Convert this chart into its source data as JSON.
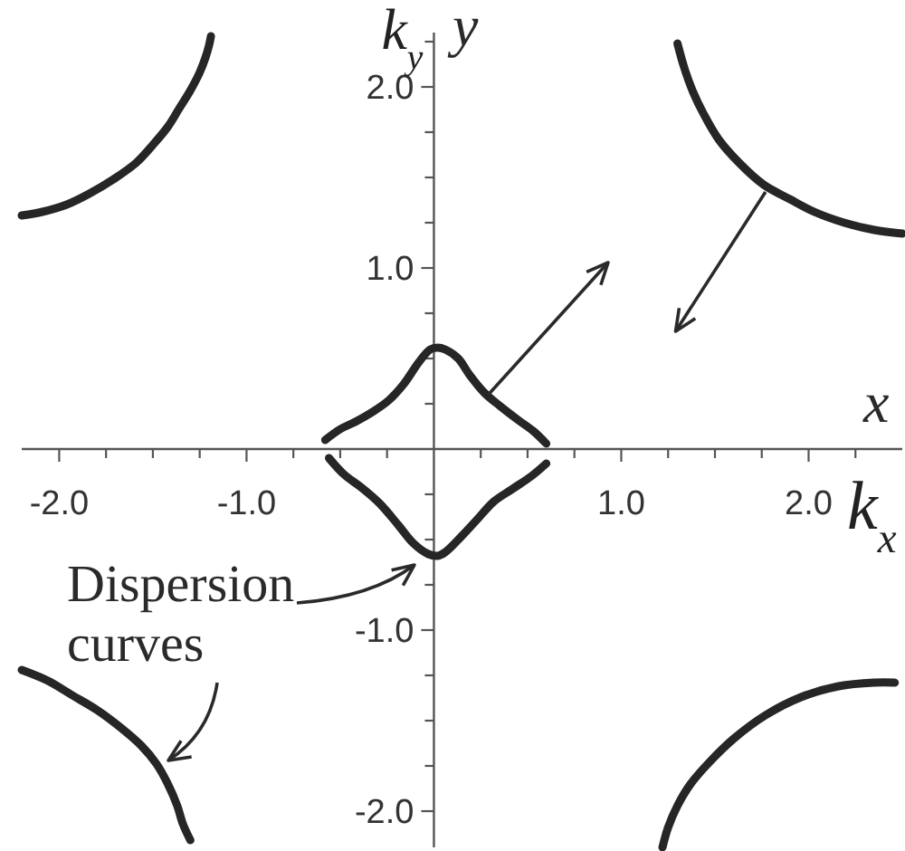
{
  "chart_data": {
    "type": "line",
    "xlabel": "k$_{x}$",
    "ylabel": "k$_{y}$",
    "annotations": [
      "Dispersion curves",
      "x",
      "y"
    ],
    "xlim": [
      -2.2,
      2.5
    ],
    "ylim": [
      -2.2,
      2.3
    ],
    "xticks": [
      {
        "value": -2,
        "label": "-2.0"
      },
      {
        "value": -1.75,
        "label": null
      },
      {
        "value": -1.5,
        "label": null
      },
      {
        "value": -1.25,
        "label": null
      },
      {
        "value": -1,
        "label": "-1.0"
      },
      {
        "value": -0.75,
        "label": null
      },
      {
        "value": -0.5,
        "label": null
      },
      {
        "value": -0.25,
        "label": null
      },
      {
        "value": 0.25,
        "label": null
      },
      {
        "value": 0.5,
        "label": null
      },
      {
        "value": 0.75,
        "label": null
      },
      {
        "value": 1,
        "label": "1.0"
      },
      {
        "value": 1.25,
        "label": null
      },
      {
        "value": 1.5,
        "label": null
      },
      {
        "value": 1.75,
        "label": null
      },
      {
        "value": 2,
        "label": "2.0"
      },
      {
        "value": 2.25,
        "label": null
      }
    ],
    "yticks": [
      {
        "value": -2,
        "label": "-2.0"
      },
      {
        "value": -1.75,
        "label": null
      },
      {
        "value": -1.5,
        "label": null
      },
      {
        "value": -1.25,
        "label": null
      },
      {
        "value": -1,
        "label": "-1.0"
      },
      {
        "value": -0.75,
        "label": null
      },
      {
        "value": -0.5,
        "label": null
      },
      {
        "value": -0.25,
        "label": null
      },
      {
        "value": 0.25,
        "label": null
      },
      {
        "value": 0.5,
        "label": null
      },
      {
        "value": 0.75,
        "label": null
      },
      {
        "value": 1,
        "label": "1.0"
      },
      {
        "value": 1.25,
        "label": null
      },
      {
        "value": 1.5,
        "label": null
      },
      {
        "value": 1.75,
        "label": null
      },
      {
        "value": 2,
        "label": "2.0"
      },
      {
        "value": 2.25,
        "label": null
      }
    ],
    "series": [
      {
        "color": "#262626",
        "x": [
          -0.58,
          -0.5,
          -0.42,
          -0.32,
          -0.24,
          -0.16,
          -0.08,
          -0.02,
          0.02,
          0.06,
          0.13,
          0.19,
          0.27,
          0.35,
          0.45,
          0.53,
          0.6
        ],
        "values": [
          0.05,
          0.11,
          0.15,
          0.21,
          0.27,
          0.36,
          0.48,
          0.55,
          0.56,
          0.55,
          0.5,
          0.41,
          0.31,
          0.24,
          0.16,
          0.1,
          0.03
        ]
      },
      {
        "color": "#262626",
        "x": [
          -0.56,
          -0.48,
          -0.39,
          -0.29,
          -0.19,
          -0.11,
          -0.03,
          0.02,
          0.06,
          0.14,
          0.23,
          0.32,
          0.42,
          0.52,
          0.6
        ],
        "values": [
          -0.05,
          -0.14,
          -0.21,
          -0.3,
          -0.42,
          -0.52,
          -0.58,
          -0.59,
          -0.57,
          -0.49,
          -0.39,
          -0.29,
          -0.22,
          -0.15,
          -0.08
        ]
      },
      {
        "color": "#262626",
        "x": [
          -2.2,
          -2.09,
          -1.96,
          -1.84,
          -1.71,
          -1.59,
          -1.5,
          -1.42,
          -1.36,
          -1.3,
          -1.25,
          -1.22,
          -1.2,
          -1.19
        ],
        "values": [
          1.29,
          1.31,
          1.35,
          1.41,
          1.49,
          1.58,
          1.68,
          1.78,
          1.88,
          1.98,
          2.08,
          2.16,
          2.23,
          2.28
        ]
      },
      {
        "color": "#262626",
        "x": [
          1.3,
          1.335,
          1.38,
          1.44,
          1.52,
          1.63,
          1.76,
          1.9,
          2.03,
          2.19,
          2.35,
          2.5
        ],
        "values": [
          2.24,
          2.11,
          1.98,
          1.85,
          1.71,
          1.58,
          1.46,
          1.38,
          1.31,
          1.25,
          1.21,
          1.19
        ]
      },
      {
        "color": "#262626",
        "x": [
          -2.2,
          -2.06,
          -1.93,
          -1.8,
          -1.67,
          -1.56,
          -1.48,
          -1.42,
          -1.37,
          -1.34,
          -1.3
        ],
        "values": [
          -1.22,
          -1.28,
          -1.36,
          -1.44,
          -1.54,
          -1.64,
          -1.74,
          -1.85,
          -1.97,
          -2.07,
          -2.16
        ]
      },
      {
        "color": "#262626",
        "x": [
          1.22,
          1.25,
          1.3,
          1.37,
          1.47,
          1.6,
          1.77,
          1.96,
          2.16,
          2.35,
          2.46
        ],
        "values": [
          -2.2,
          -2.09,
          -1.97,
          -1.85,
          -1.73,
          -1.6,
          -1.47,
          -1.37,
          -1.31,
          -1.29,
          -1.29
        ]
      }
    ]
  }
}
